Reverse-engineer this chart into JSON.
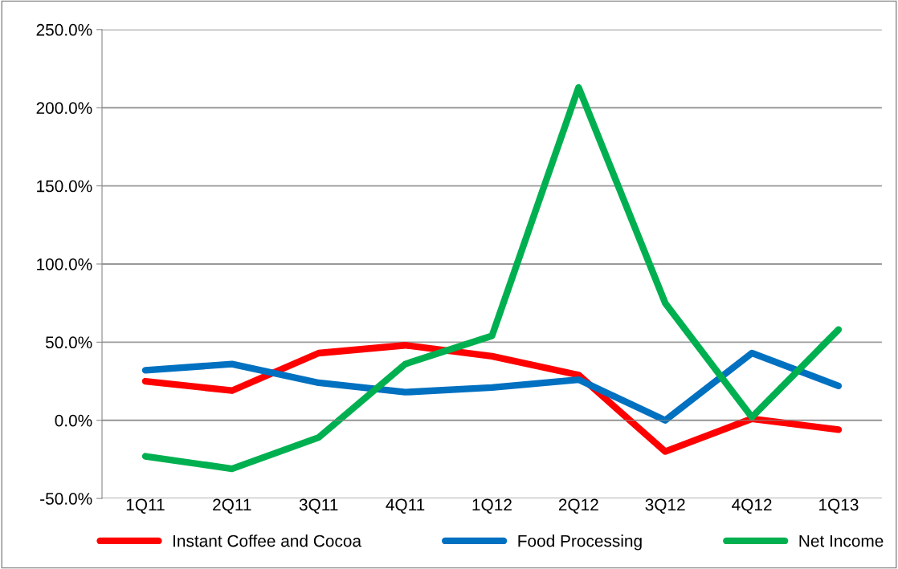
{
  "chart_data": {
    "type": "line",
    "categories": [
      "1Q11",
      "2Q11",
      "3Q11",
      "4Q11",
      "1Q12",
      "2Q12",
      "3Q12",
      "4Q12",
      "1Q13"
    ],
    "series": [
      {
        "name": "Instant Coffee and Cocoa",
        "color": "#ff0000",
        "values": [
          25,
          19,
          43,
          48,
          41,
          29,
          -20,
          1,
          -6
        ]
      },
      {
        "name": "Food Processing",
        "color": "#0070c0",
        "values": [
          32,
          36,
          24,
          18,
          21,
          26,
          0,
          43,
          22
        ]
      },
      {
        "name": "Net Income",
        "color": "#00b050",
        "values": [
          -23,
          -31,
          -11,
          36,
          54,
          213,
          75,
          2,
          58
        ]
      }
    ],
    "ylim": [
      -50,
      250
    ],
    "yticks": [
      {
        "value": -50,
        "label": "-50.0%"
      },
      {
        "value": 0,
        "label": "0.0%"
      },
      {
        "value": 50,
        "label": "50.0%"
      },
      {
        "value": 100,
        "label": "100.0%"
      },
      {
        "value": 150,
        "label": "150.0%"
      },
      {
        "value": 200,
        "label": "200.0%"
      },
      {
        "value": 250,
        "label": "250.0%"
      }
    ],
    "grid": "y",
    "legend": "bottom",
    "marker": "none",
    "line_style": "solid"
  }
}
